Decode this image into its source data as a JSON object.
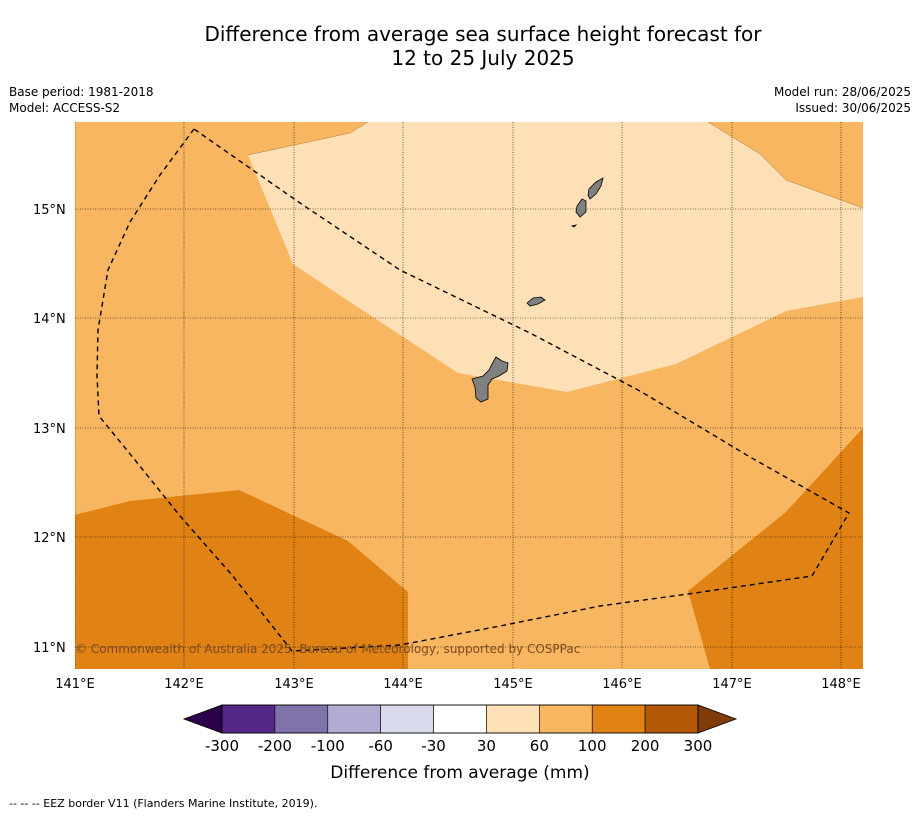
{
  "title": {
    "line1": "Difference from average sea surface height forecast for",
    "line2": "12 to 25 July 2025"
  },
  "meta_left": {
    "base_period": "Base period: 1981-2018",
    "model": "Model: ACCESS-S2"
  },
  "meta_right": {
    "model_run": "Model run: 28/06/2025",
    "issued": "Issued: 30/06/2025"
  },
  "map": {
    "lat_labels": [
      "15°N",
      "14°N",
      "13°N",
      "12°N",
      "11°N"
    ],
    "lon_labels": [
      "141°E",
      "142°E",
      "143°E",
      "144°E",
      "145°E",
      "146°E",
      "147°E",
      "148°E"
    ],
    "copyright": "© Commonwealth of Australia 2025, Bureau of Meteorology, supported by COSPPac",
    "colors": {
      "band_30_60": "#fde0b5",
      "band_60_100": "#f9b660",
      "band_100_200": "#e08214",
      "land": "#808080",
      "grid": "#000000"
    }
  },
  "colorbar": {
    "title": "Difference from average (mm)",
    "tick_labels": [
      "-300",
      "-200",
      "-100",
      "-60",
      "-30",
      "30",
      "60",
      "100",
      "200",
      "300"
    ],
    "colors": [
      "#2d004b",
      "#542788",
      "#8073ac",
      "#b2abd2",
      "#d8daeb",
      "#ffffff",
      "#fee0b6",
      "#f9b660",
      "#e08214",
      "#b35806",
      "#7f3b08"
    ]
  },
  "footer": "--  --  -- EEZ border V11 (Flanders Marine Institute, 2019)."
}
